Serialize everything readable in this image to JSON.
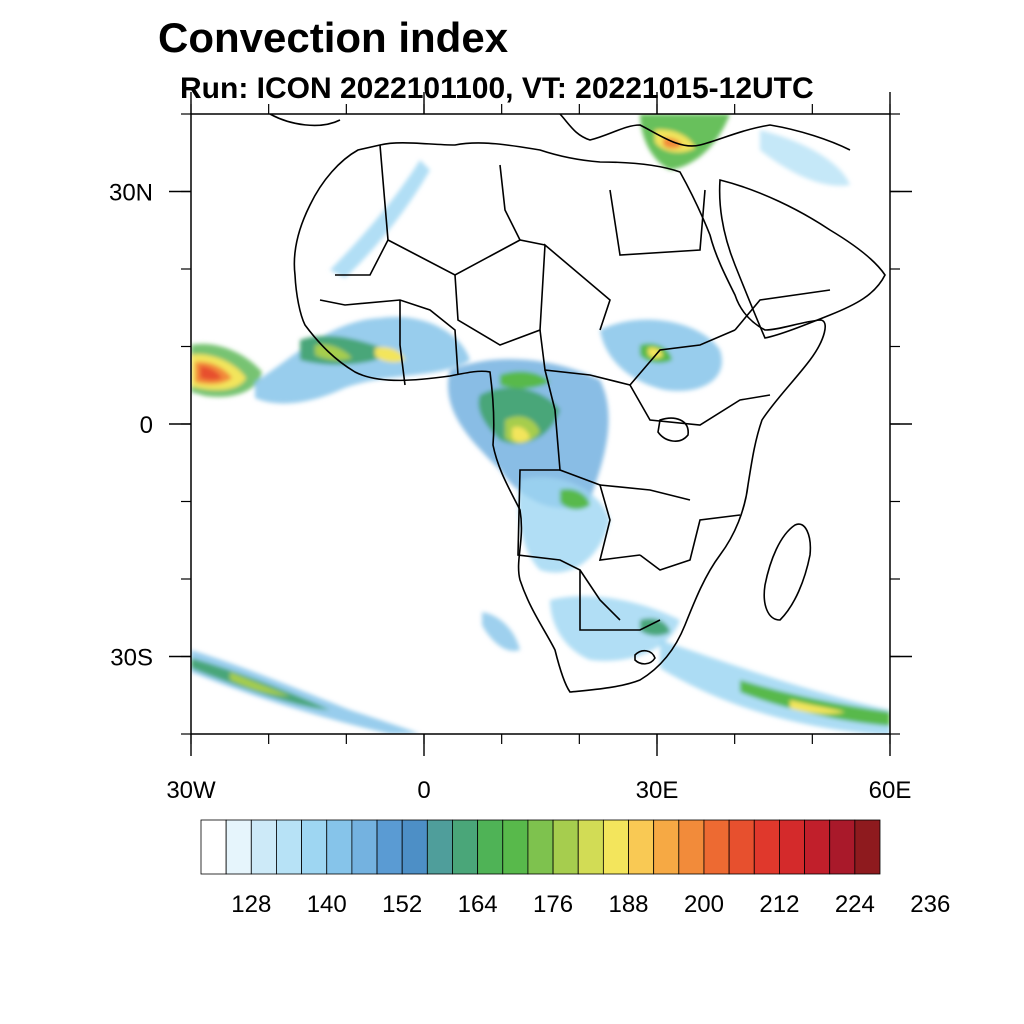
{
  "title": "Convection index",
  "subtitle": "Run: ICON 2022101100,  VT: 20221015-12UTC",
  "map": {
    "lon_range": [
      -30,
      60
    ],
    "lat_range": [
      -40,
      40
    ],
    "x_ticks": [
      {
        "lon": -30,
        "label": "30W"
      },
      {
        "lon": 0,
        "label": "0"
      },
      {
        "lon": 30,
        "label": "30E"
      },
      {
        "lon": 60,
        "label": "60E"
      }
    ],
    "y_ticks": [
      {
        "lat": 30,
        "label": "30N"
      },
      {
        "lat": 0,
        "label": "0"
      },
      {
        "lat": -30,
        "label": "30S"
      }
    ],
    "minor_lon_step": 10,
    "minor_lat_step": 10
  },
  "colorbar": {
    "colors": [
      "#ffffff",
      "#e6f5fc",
      "#cdeaf8",
      "#b7e2f6",
      "#9ed6f2",
      "#86c4ea",
      "#74b2e0",
      "#5a9bd3",
      "#4d8fc6",
      "#4f9e9b",
      "#4aa679",
      "#4fb356",
      "#58b94b",
      "#7ec24e",
      "#a6cd4e",
      "#d2dc55",
      "#f3e55c",
      "#f9c954",
      "#f6a944",
      "#f28b3a",
      "#ed6a32",
      "#e7502e",
      "#e0382c",
      "#d42a2b",
      "#c11f2b",
      "#a9192a",
      "#8e1a1e"
    ],
    "labels": [
      "128",
      "140",
      "152",
      "164",
      "176",
      "188",
      "200",
      "212",
      "224",
      "236"
    ]
  },
  "palette": {
    "coast": "#000000",
    "frame": "#000000"
  }
}
